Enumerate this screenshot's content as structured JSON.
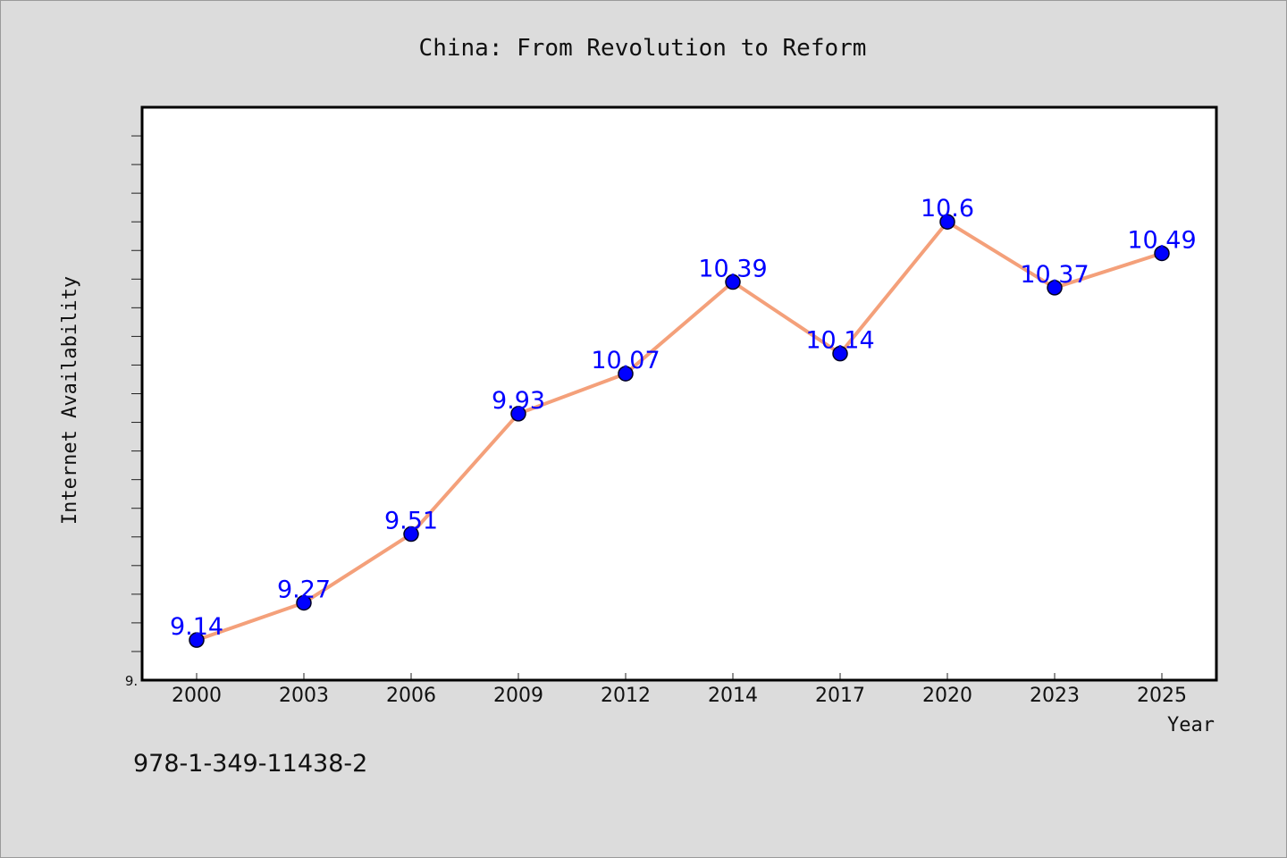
{
  "chart_data": {
    "type": "line",
    "title": "China: From Revolution to Reform",
    "xlabel": "Year",
    "ylabel": "Internet Availability",
    "categories": [
      "2000",
      "2003",
      "2006",
      "2009",
      "2012",
      "2014",
      "2017",
      "2020",
      "2023",
      "2025"
    ],
    "series": [
      {
        "values": [
          9.14,
          9.27,
          9.51,
          9.93,
          10.07,
          10.39,
          10.14,
          10.6,
          10.37,
          10.49
        ],
        "color": "#f4a07a",
        "marker_color": "#0000ff"
      }
    ],
    "data_labels": [
      "9.14",
      "9.27",
      "9.51",
      "9.93",
      "10.07",
      "10.39",
      "10.14",
      "10.6",
      "10.37",
      "10.49"
    ],
    "ylim": [
      9.0,
      11.0
    ],
    "ytick_labels": [
      "9."
    ],
    "grid": false,
    "legend": "none",
    "label_color": "#0000ff"
  },
  "footer": {
    "isbn": "978-1-349-11438-2"
  }
}
